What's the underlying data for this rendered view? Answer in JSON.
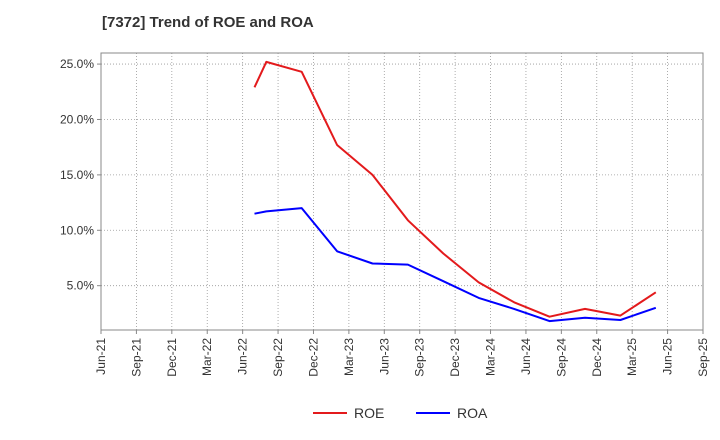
{
  "chart_data": {
    "type": "line",
    "title": "[7372]  Trend of ROE and ROA",
    "xlabel": "",
    "ylabel": "",
    "x_ticks": [
      "Jun-21",
      "Sep-21",
      "Dec-21",
      "Mar-22",
      "Jun-22",
      "Sep-22",
      "Dec-22",
      "Mar-23",
      "Jun-23",
      "Sep-23",
      "Dec-23",
      "Mar-24",
      "Jun-24",
      "Sep-24",
      "Dec-24",
      "Mar-25",
      "Jun-25",
      "Sep-25"
    ],
    "y_ticks": [
      5,
      10,
      15,
      20,
      25
    ],
    "y_tick_format": "percent_1dp",
    "ylim": [
      1.0,
      26.0
    ],
    "grid": true,
    "legend_position": "bottom-center",
    "series": [
      {
        "name": "ROE",
        "color": "#e31a1c",
        "points": [
          {
            "x": "Jul-22",
            "y": 22.9
          },
          {
            "x": "Aug-22",
            "y": 25.2
          },
          {
            "x": "Nov-22",
            "y": 24.3
          },
          {
            "x": "Feb-23",
            "y": 17.7
          },
          {
            "x": "May-23",
            "y": 15.0
          },
          {
            "x": "Aug-23",
            "y": 10.9
          },
          {
            "x": "Nov-23",
            "y": 7.9
          },
          {
            "x": "Feb-24",
            "y": 5.3
          },
          {
            "x": "May-24",
            "y": 3.5
          },
          {
            "x": "Aug-24",
            "y": 2.2
          },
          {
            "x": "Nov-24",
            "y": 2.9
          },
          {
            "x": "Feb-25",
            "y": 2.3
          },
          {
            "x": "May-25",
            "y": 4.4
          }
        ]
      },
      {
        "name": "ROA",
        "color": "#0000ff",
        "points": [
          {
            "x": "Jul-22",
            "y": 11.5
          },
          {
            "x": "Aug-22",
            "y": 11.7
          },
          {
            "x": "Nov-22",
            "y": 12.0
          },
          {
            "x": "Feb-23",
            "y": 8.1
          },
          {
            "x": "May-23",
            "y": 7.0
          },
          {
            "x": "Aug-23",
            "y": 6.9
          },
          {
            "x": "Nov-23",
            "y": 5.4
          },
          {
            "x": "Feb-24",
            "y": 3.9
          },
          {
            "x": "May-24",
            "y": 2.9
          },
          {
            "x": "Aug-24",
            "y": 1.8
          },
          {
            "x": "Nov-24",
            "y": 2.1
          },
          {
            "x": "Feb-25",
            "y": 1.9
          },
          {
            "x": "May-25",
            "y": 3.0
          }
        ]
      }
    ]
  }
}
